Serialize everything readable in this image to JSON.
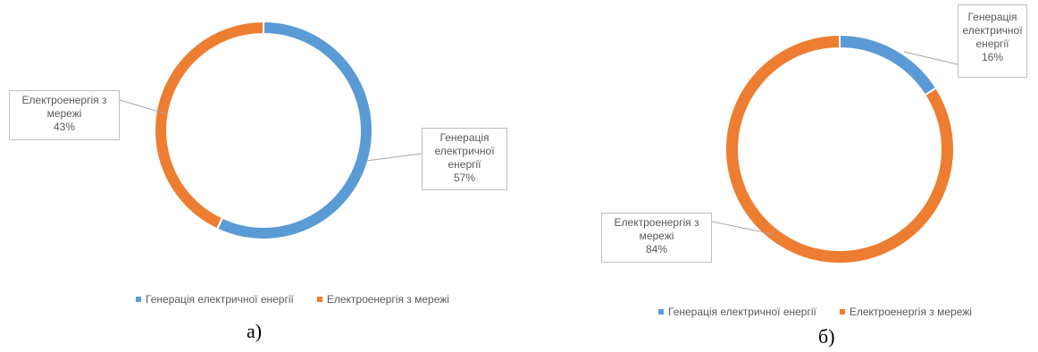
{
  "colors": {
    "generation": "#5B9BD5",
    "grid": "#ED7D31"
  },
  "chart_data": [
    {
      "type": "pie",
      "variant": "donut",
      "caption": "а)",
      "categories": [
        "Генерація електричної енергії",
        "Електроенергія з мережі"
      ],
      "values": [
        57,
        43
      ],
      "unit": "%",
      "data_labels": [
        {
          "lines": [
            "Генерація",
            "електричної",
            "енергії",
            "57%"
          ]
        },
        {
          "lines": [
            "Електроенергія з",
            "мережі",
            "43%"
          ]
        }
      ],
      "legend": {
        "placement": "bottom",
        "entries": [
          "Генерація електричної енергії",
          "Електроенергія з мережі"
        ]
      }
    },
    {
      "type": "pie",
      "variant": "donut",
      "caption": "б)",
      "categories": [
        "Генерація електричної енергії",
        "Електроенергія з мережі"
      ],
      "values": [
        16,
        84
      ],
      "unit": "%",
      "data_labels": [
        {
          "lines": [
            "Генерація",
            "електричної",
            "енергії",
            "16%"
          ]
        },
        {
          "lines": [
            "Електроенергія з",
            "мережі",
            "84%"
          ]
        }
      ],
      "legend": {
        "placement": "bottom",
        "entries": [
          "Генерація електричної енергії",
          "Електроенергія з мережі"
        ]
      }
    }
  ]
}
